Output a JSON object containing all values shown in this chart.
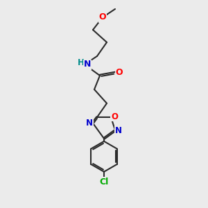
{
  "background_color": "#ebebeb",
  "bond_color": "#2b2b2b",
  "bond_width": 1.5,
  "atom_colors": {
    "O": "#ff0000",
    "N": "#0000cd",
    "Cl": "#00aa00",
    "HN_H": "#008b8b",
    "HN_N": "#0000cd"
  },
  "font_size_atom": 8.5
}
